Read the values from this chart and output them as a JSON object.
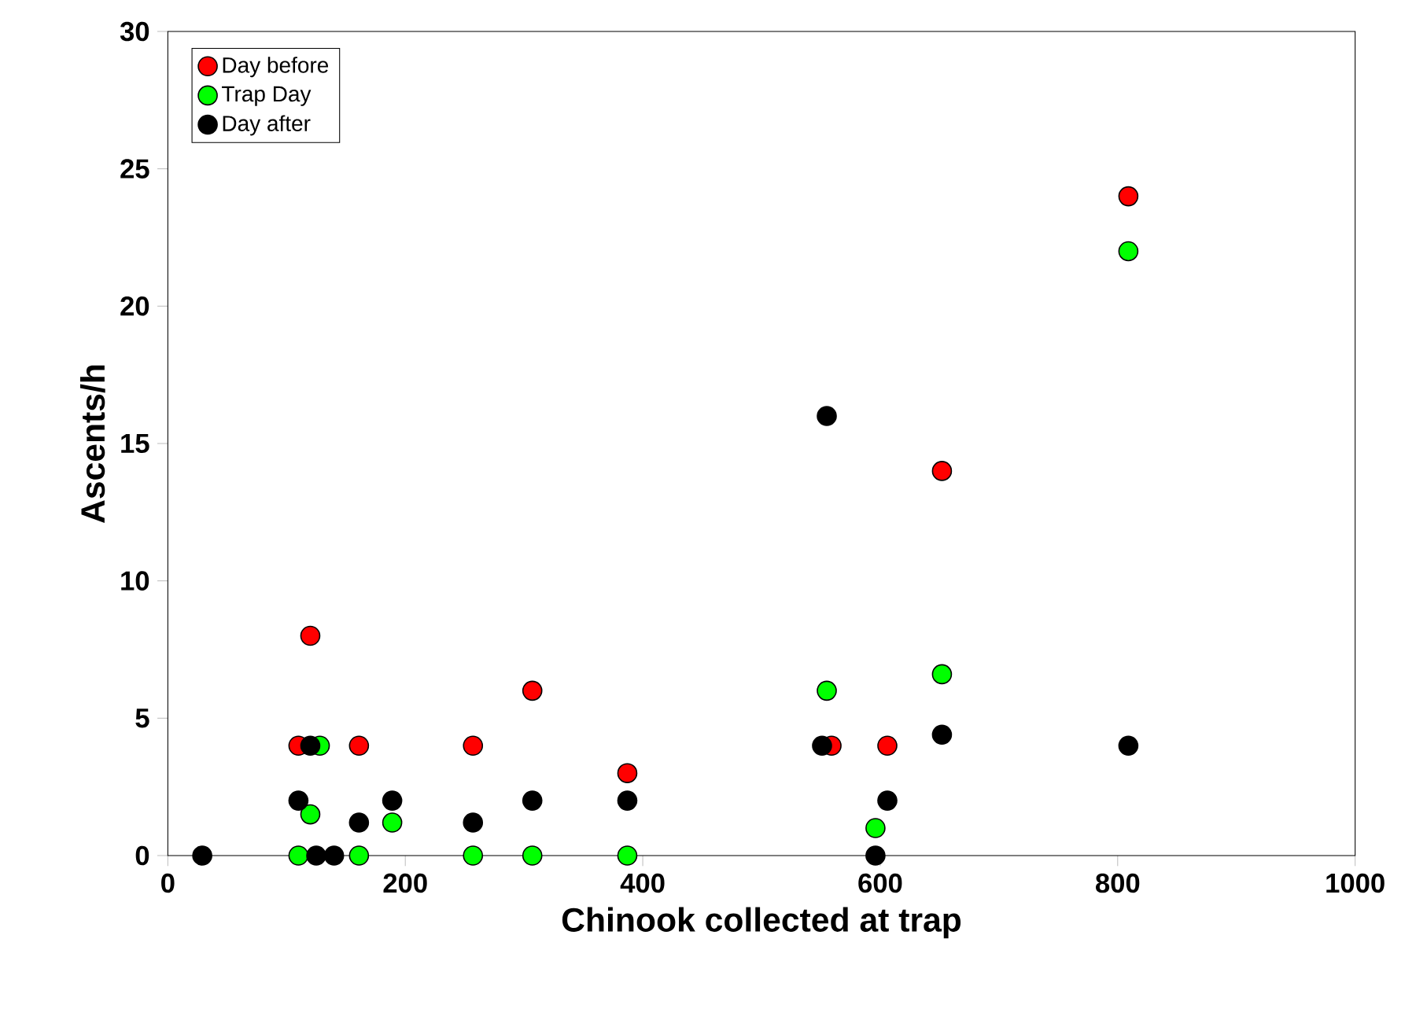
{
  "chart_data": {
    "type": "scatter",
    "xlabel": "Chinook collected at trap",
    "ylabel": "Ascents/h",
    "xlim": [
      0,
      1000
    ],
    "ylim": [
      0,
      30
    ],
    "xticks": [
      0,
      200,
      400,
      600,
      800,
      1000
    ],
    "yticks": [
      0,
      5,
      10,
      15,
      20,
      25,
      30
    ],
    "legend": "top left",
    "marker": "circle",
    "grid": false,
    "series": [
      {
        "name": "Day before",
        "color": "#ff0000",
        "x": [
          110,
          120,
          161,
          257,
          307,
          387,
          559,
          606,
          652,
          809
        ],
        "values": [
          4,
          8,
          4,
          4,
          6,
          3,
          4,
          4,
          14,
          24
        ]
      },
      {
        "name": "Trap Day",
        "color": "#00ff00",
        "x": [
          110,
          120,
          128,
          161,
          189,
          257,
          307,
          387,
          555,
          596,
          652,
          809
        ],
        "values": [
          0,
          1.5,
          4,
          0,
          1.2,
          0,
          0,
          0,
          6,
          1,
          6.6,
          22
        ]
      },
      {
        "name": "Day after",
        "color": "#000000",
        "x": [
          29,
          110,
          120,
          125,
          140,
          161,
          189,
          257,
          307,
          387,
          551,
          555,
          596,
          606,
          652,
          809
        ],
        "values": [
          0,
          2,
          4,
          0,
          0,
          1.2,
          2,
          1.2,
          2,
          2,
          4,
          16,
          0,
          2,
          4.4,
          4
        ]
      }
    ]
  }
}
